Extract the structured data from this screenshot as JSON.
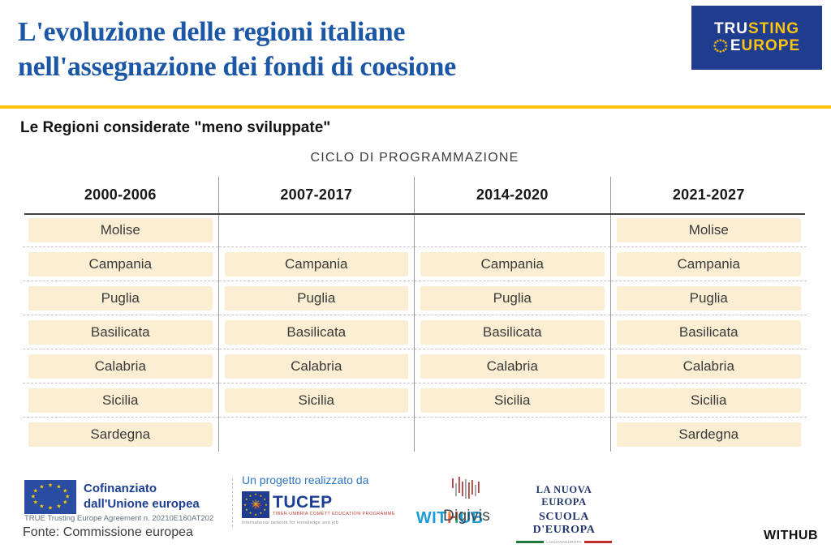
{
  "header": {
    "title_line1": "L'evoluzione delle regioni italiane",
    "title_line2": "nell'assegnazione dei fondi di coesione",
    "title_color": "#1c57a6",
    "accent_color": "#ffc40c"
  },
  "brand_logo": {
    "tru": "TRU",
    "sting": "STING",
    "e": "E",
    "urope": "UROPE",
    "background": "#203c8e",
    "yellow": "#ffc40c",
    "white": "#ffffff"
  },
  "subtitle": "Le Regioni considerate \"meno sviluppate\"",
  "table": {
    "axis_label": "CICLO DI PROGRAMMAZIONE",
    "columns": [
      "2000-2006",
      "2007-2017",
      "2014-2020",
      "2021-2027"
    ],
    "rows": [
      "Molise",
      "Campania",
      "Puglia",
      "Basilicata",
      "Calabria",
      "Sicilia",
      "Sardegna"
    ],
    "presence": [
      [
        1,
        0,
        0,
        1
      ],
      [
        1,
        1,
        1,
        1
      ],
      [
        1,
        1,
        1,
        1
      ],
      [
        1,
        1,
        1,
        1
      ],
      [
        1,
        1,
        1,
        1
      ],
      [
        1,
        1,
        1,
        1
      ],
      [
        1,
        0,
        0,
        1
      ]
    ],
    "cell_color": "#fbeed2"
  },
  "chart_data": {
    "type": "table",
    "title": "L'evoluzione delle regioni italiane nell'assegnazione dei fondi di coesione",
    "subtitle": "Le Regioni considerate \"meno sviluppate\"",
    "column_axis_label": "CICLO DI PROGRAMMAZIONE",
    "categories": [
      "2000-2006",
      "2007-2017",
      "2014-2020",
      "2021-2027"
    ],
    "rows": [
      "Molise",
      "Campania",
      "Puglia",
      "Basilicata",
      "Calabria",
      "Sicilia",
      "Sardegna"
    ],
    "membership_by_row": {
      "Molise": [
        "2000-2006",
        "2021-2027"
      ],
      "Campania": [
        "2000-2006",
        "2007-2017",
        "2014-2020",
        "2021-2027"
      ],
      "Puglia": [
        "2000-2006",
        "2007-2017",
        "2014-2020",
        "2021-2027"
      ],
      "Basilicata": [
        "2000-2006",
        "2007-2017",
        "2014-2020",
        "2021-2027"
      ],
      "Calabria": [
        "2000-2006",
        "2007-2017",
        "2014-2020",
        "2021-2027"
      ],
      "Sicilia": [
        "2000-2006",
        "2007-2017",
        "2014-2020",
        "2021-2027"
      ],
      "Sardegna": [
        "2000-2006",
        "2021-2027"
      ]
    },
    "source": "Fonte: Commissione europea"
  },
  "footer": {
    "eu_funding": {
      "line1": "Cofinanziato",
      "line2": "dall'Unione europea",
      "agreement": "TRUE Trusting Europe Agreement n. 20210E160AT202"
    },
    "source": "Fonte: Commissione europea",
    "project_label": "Un progetto realizzato da",
    "tucep": {
      "wordmark": "TUCEP",
      "subtext": "TIBER UMBRIA COMETT EDUCATION PROGRAMME",
      "tagline": "international network for knowledge and job"
    },
    "withub_center": {
      "wit": "WIT",
      "h": "H",
      "ub": "UB"
    },
    "digivis": "Digivis",
    "nuova_europa": {
      "line1": "LA NUOVA EUROPA",
      "line2": "SCUOLA D'EUROPA",
      "tiny": "LANUOVAEUROPA"
    },
    "withub_bottom": "WITHUB"
  }
}
